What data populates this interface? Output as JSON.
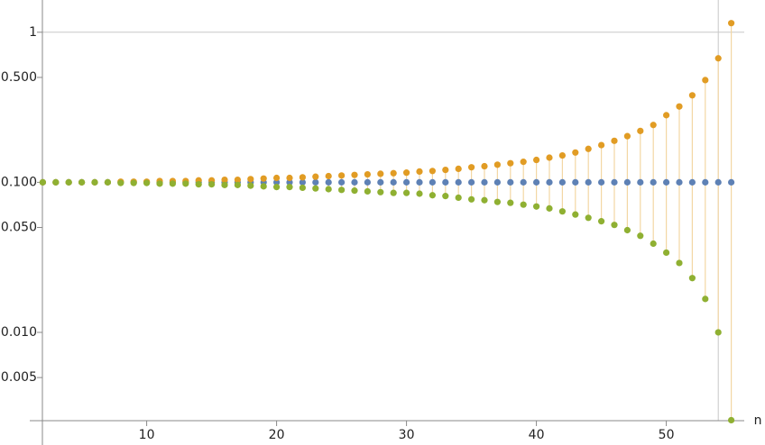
{
  "chart_data": {
    "type": "scatter",
    "x_label": "n",
    "log_y": true,
    "filling": true,
    "x": [
      2,
      3,
      4,
      5,
      6,
      7,
      8,
      9,
      10,
      11,
      12,
      13,
      14,
      15,
      16,
      17,
      18,
      19,
      20,
      21,
      22,
      23,
      24,
      25,
      26,
      27,
      28,
      29,
      30,
      31,
      32,
      33,
      34,
      35,
      36,
      37,
      38,
      39,
      40,
      41,
      42,
      43,
      44,
      45,
      46,
      47,
      48,
      49,
      50,
      51,
      52,
      53,
      54,
      55
    ],
    "series": [
      {
        "color": "#5e81b5",
        "values": [
          0.1,
          0.1,
          0.1,
          0.1,
          0.1,
          0.1,
          0.1,
          0.1,
          0.1,
          0.1,
          0.1,
          0.1,
          0.1,
          0.1,
          0.1,
          0.1,
          0.1,
          0.1,
          0.1,
          0.1,
          0.1,
          0.1,
          0.1,
          0.1,
          0.1,
          0.1,
          0.1,
          0.1,
          0.1,
          0.1,
          0.1,
          0.1,
          0.1,
          0.1,
          0.1,
          0.1,
          0.1,
          0.1,
          0.1,
          0.1,
          0.1,
          0.1,
          0.1,
          0.1,
          0.1,
          0.1,
          0.1,
          0.1,
          0.1,
          0.1,
          0.1,
          0.1,
          0.1,
          0.1
        ]
      },
      {
        "color": "#e19c24",
        "values": [
          0.1,
          0.1,
          0.1,
          0.1,
          0.1,
          0.1,
          0.101,
          0.101,
          0.101,
          0.102,
          0.102,
          0.102,
          0.103,
          0.103,
          0.104,
          0.104,
          0.105,
          0.106,
          0.107,
          0.107,
          0.108,
          0.109,
          0.11,
          0.111,
          0.112,
          0.113,
          0.114,
          0.115,
          0.116,
          0.118,
          0.119,
          0.121,
          0.123,
          0.126,
          0.128,
          0.131,
          0.134,
          0.137,
          0.141,
          0.146,
          0.151,
          0.158,
          0.167,
          0.177,
          0.189,
          0.203,
          0.22,
          0.241,
          0.28,
          0.32,
          0.38,
          0.48,
          0.67,
          1.15
        ]
      },
      {
        "color": "#8fb032",
        "values": [
          0.1,
          0.1,
          0.1,
          0.1,
          0.1,
          0.1,
          0.099,
          0.099,
          0.099,
          0.098,
          0.098,
          0.098,
          0.097,
          0.097,
          0.096,
          0.096,
          0.095,
          0.094,
          0.093,
          0.093,
          0.092,
          0.091,
          0.09,
          0.089,
          0.088,
          0.087,
          0.086,
          0.085,
          0.085,
          0.084,
          0.082,
          0.081,
          0.079,
          0.077,
          0.076,
          0.074,
          0.073,
          0.071,
          0.069,
          0.067,
          0.064,
          0.061,
          0.058,
          0.055,
          0.052,
          0.048,
          0.044,
          0.039,
          0.034,
          0.029,
          0.023,
          0.0167,
          0.01,
          0.0026
        ]
      }
    ],
    "xlim": [
      1,
      56
    ],
    "ylim": [
      0.00258,
      1.64
    ],
    "xticks": [
      10,
      20,
      30,
      40,
      50
    ],
    "yticks": [
      0.005,
      {
        "value": 0.01,
        "label": "0.010"
      },
      {
        "value": 0.05,
        "label": "0.050"
      },
      {
        "value": 0.1,
        "label": "0.100"
      },
      {
        "value": 0.5,
        "label": "0.500"
      },
      1
    ],
    "gridlines_x": [
      54
    ],
    "gridlines_y": [
      1
    ]
  }
}
